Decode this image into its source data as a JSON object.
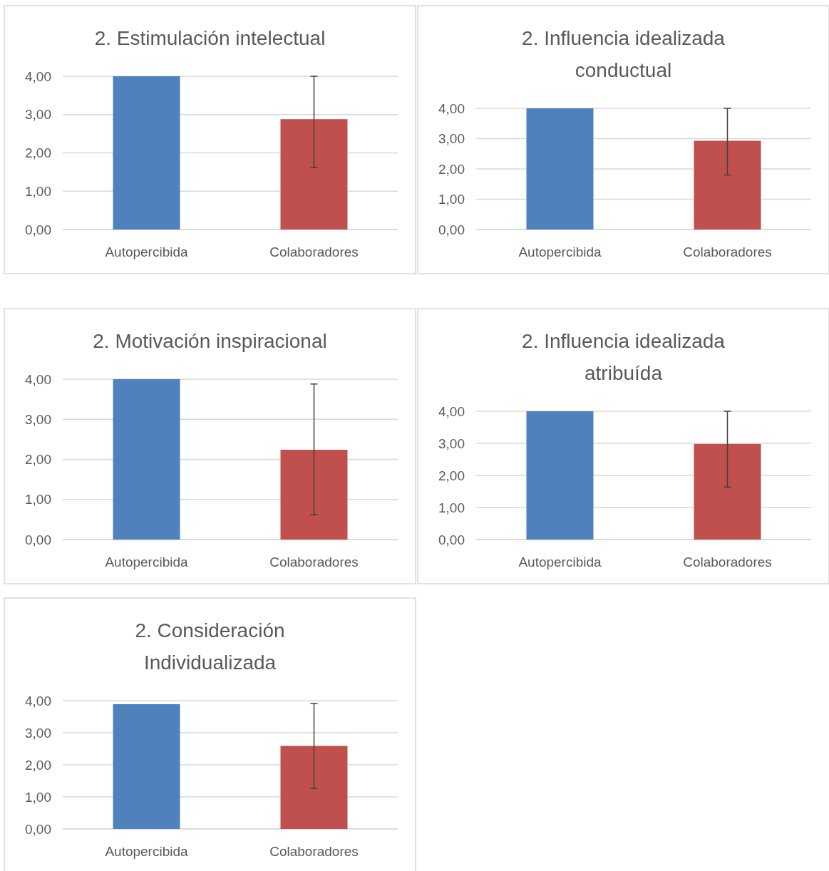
{
  "chart_data": [
    {
      "type": "bar",
      "title": "2. Estimulación intelectual",
      "categories": [
        "Autopercibida",
        "Colaboradores"
      ],
      "values": [
        4.0,
        2.88
      ],
      "colors": [
        "#4f81bd",
        "#c0504d"
      ],
      "errors": [
        null,
        [
          1.62,
          4.0
        ]
      ],
      "ylim": [
        0,
        4
      ],
      "yticks": [
        {
          "value": 0,
          "label": "0,00"
        },
        {
          "value": 1,
          "label": "1,00"
        },
        {
          "value": 2,
          "label": "2,00"
        },
        {
          "value": 3,
          "label": "3,00"
        },
        {
          "value": 4,
          "label": "4,00"
        }
      ],
      "grid": "y"
    },
    {
      "type": "bar",
      "title": "2. Influencia idealizada conductual",
      "categories": [
        "Autopercibida",
        "Colaboradores"
      ],
      "values": [
        4.0,
        2.93
      ],
      "colors": [
        "#4f81bd",
        "#c0504d"
      ],
      "errors": [
        null,
        [
          1.8,
          4.0
        ]
      ],
      "ylim": [
        0,
        4
      ],
      "yticks": [
        {
          "value": 0,
          "label": "0,00"
        },
        {
          "value": 1,
          "label": "1,00"
        },
        {
          "value": 2,
          "label": "2,00"
        },
        {
          "value": 3,
          "label": "3,00"
        },
        {
          "value": 4,
          "label": "4,00"
        }
      ],
      "grid": "y"
    },
    {
      "type": "bar",
      "title": "2. Motivación inspiracional",
      "categories": [
        "Autopercibida",
        "Colaboradores"
      ],
      "values": [
        4.0,
        2.24
      ],
      "colors": [
        "#4f81bd",
        "#c0504d"
      ],
      "errors": [
        null,
        [
          0.62,
          3.88
        ]
      ],
      "ylim": [
        0,
        4
      ],
      "yticks": [
        {
          "value": 0,
          "label": "0,00"
        },
        {
          "value": 1,
          "label": "1,00"
        },
        {
          "value": 2,
          "label": "2,00"
        },
        {
          "value": 3,
          "label": "3,00"
        },
        {
          "value": 4,
          "label": "4,00"
        }
      ],
      "grid": "y"
    },
    {
      "type": "bar",
      "title": "2. Influencia idealizada atribuída",
      "categories": [
        "Autopercibida",
        "Colaboradores"
      ],
      "values": [
        4.0,
        2.98
      ],
      "colors": [
        "#4f81bd",
        "#c0504d"
      ],
      "errors": [
        null,
        [
          1.64,
          4.0
        ]
      ],
      "ylim": [
        0,
        4
      ],
      "yticks": [
        {
          "value": 0,
          "label": "0,00"
        },
        {
          "value": 1,
          "label": "1,00"
        },
        {
          "value": 2,
          "label": "2,00"
        },
        {
          "value": 3,
          "label": "3,00"
        },
        {
          "value": 4,
          "label": "4,00"
        }
      ],
      "grid": "y"
    },
    {
      "type": "bar",
      "title": "2. Consideración Individualizada",
      "categories": [
        "Autopercibida",
        "Colaboradores"
      ],
      "values": [
        3.89,
        2.59
      ],
      "colors": [
        "#4f81bd",
        "#c0504d"
      ],
      "errors": [
        null,
        [
          1.26,
          3.91
        ]
      ],
      "ylim": [
        0,
        4
      ],
      "yticks": [
        {
          "value": 0,
          "label": "0,00"
        },
        {
          "value": 1,
          "label": "1,00"
        },
        {
          "value": 2,
          "label": "2,00"
        },
        {
          "value": 3,
          "label": "3,00"
        },
        {
          "value": 4,
          "label": "4,00"
        }
      ],
      "grid": "y"
    }
  ]
}
